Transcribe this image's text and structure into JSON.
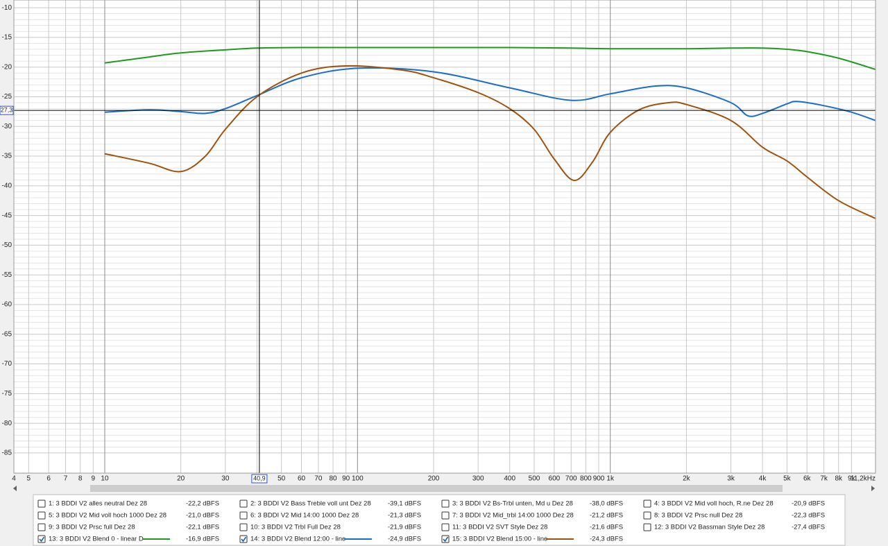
{
  "chart_data": {
    "type": "line",
    "xscale": "log",
    "xlim": [
      4.37,
      11200
    ],
    "ylim": [
      -88.4,
      -8.7
    ],
    "yticks": [
      -10,
      -15,
      -20,
      -25,
      -30,
      -35,
      -40,
      -45,
      -50,
      -55,
      -60,
      -65,
      -70,
      -75,
      -80,
      -85
    ],
    "xticks": [
      4,
      5,
      6,
      7,
      8,
      9,
      10,
      20,
      30,
      40,
      50,
      60,
      70,
      80,
      90,
      100,
      200,
      300,
      400,
      500,
      600,
      700,
      800,
      900,
      {
        "value": 1000,
        "label": "1k"
      },
      {
        "value": 2000,
        "label": "2k"
      },
      {
        "value": 3000,
        "label": "3k"
      },
      {
        "value": 4000,
        "label": "4k"
      },
      {
        "value": 5000,
        "label": "5k"
      },
      {
        "value": 6000,
        "label": "6k"
      },
      {
        "value": 7000,
        "label": "7k"
      },
      {
        "value": 8000,
        "label": "8k"
      },
      {
        "value": 9000,
        "label": "9k"
      },
      {
        "value": 11200,
        "label": "11,2kHz"
      }
    ],
    "grid": true,
    "minor_grid": true,
    "cursor": {
      "x": {
        "value": 40.9,
        "label": "40,9"
      },
      "y": {
        "value": -27.3,
        "label": "27,3"
      }
    },
    "series": [
      {
        "name": "1: 3 BDDI V2 alles neutral Dez 28",
        "level": "-22,2 dBFS",
        "color": "#c0282d",
        "checked": false
      },
      {
        "name": "2: 3 BDDI V2 Bass Treble voll unt Dez 28",
        "level": "-39,1 dBFS",
        "color": "#2e7d32",
        "checked": false
      },
      {
        "name": "3: 3 BDDI V2 Bs-Trbl unten, Md u Dez 28",
        "level": "-38,0 dBFS",
        "color": "#4a4ab0",
        "checked": false
      },
      {
        "name": "4: 3 BDDI V2 Mid voll hoch, R.ne Dez 28",
        "level": "-20,9 dBFS",
        "color": "#e07b20",
        "checked": false
      },
      {
        "name": "5: 3 BDDI V2 Mid voll hoch 1000 Dez 28",
        "level": "-21,0 dBFS",
        "color": "#3a9a3a",
        "checked": false
      },
      {
        "name": "6: 3 BDDI V2 Mid 14:00 1000 Dez 28",
        "level": "-21,3 dBFS",
        "color": "#2a6ab0",
        "checked": false
      },
      {
        "name": "7: 3 BDDI V2 Mid_trbl 14:00 1000 Dez 28",
        "level": "-21,2 dBFS",
        "color": "#8b4a1c",
        "checked": false
      },
      {
        "name": "8: 3 BDDI V2 Prsc null Dez 28",
        "level": "-22,3 dBFS",
        "color": "#2a8a8a",
        "checked": false
      },
      {
        "name": "9: 3 BDDI V2 Prsc full Dez 28",
        "level": "-22,1 dBFS",
        "color": "#8a2ab0",
        "checked": false
      },
      {
        "name": "10: 3 BDDI V2 Trbl Full Dez 28",
        "level": "-21,9 dBFS",
        "color": "#b02ab0",
        "checked": false
      },
      {
        "name": "11: 3 BDDI V2 SVT Style Dez 28",
        "level": "-21,6 dBFS",
        "color": "#a01818",
        "checked": false
      },
      {
        "name": "12: 3 BDDI V2 Bassman Style Dez 28",
        "level": "-27,4 dBFS",
        "color": "#1a6a5a",
        "checked": false
      },
      {
        "name": "13: 3 BDDI V2 Blend 0 - linear D",
        "level": "-16,9 dBFS",
        "color": "#1e9a1e",
        "checked": true,
        "x": [
          10,
          15,
          20,
          30,
          40,
          60,
          100,
          200,
          400,
          700,
          1000,
          2000,
          3000,
          4000,
          5000,
          6000,
          8000,
          11200
        ],
        "values": [
          -19.3,
          -18.3,
          -17.6,
          -17.1,
          -16.8,
          -16.7,
          -16.7,
          -16.7,
          -16.7,
          -16.8,
          -16.9,
          -16.9,
          -16.8,
          -16.8,
          -17.0,
          -17.4,
          -18.5,
          -20.4
        ]
      },
      {
        "name": "14: 3 BDDI V2 Blend 12:00 - line",
        "level": "-24,9 dBFS",
        "color": "#1a6ec8",
        "checked": true,
        "x": [
          10,
          15,
          20,
          25,
          30,
          40,
          60,
          100,
          200,
          400,
          700,
          1000,
          1500,
          2000,
          3000,
          3500,
          4000,
          5000,
          5500,
          7000,
          9000,
          11200
        ],
        "values": [
          -27.6,
          -27.2,
          -27.5,
          -27.8,
          -27.0,
          -24.8,
          -21.8,
          -20.2,
          -20.8,
          -23.5,
          -25.6,
          -24.5,
          -23.2,
          -23.5,
          -26.0,
          -28.2,
          -27.8,
          -26.2,
          -25.8,
          -26.5,
          -27.6,
          -29.0
        ]
      },
      {
        "name": "15: 3 BDDI V2 Blend 15:00 - line",
        "level": "-24,3 dBFS",
        "color": "#a0520a",
        "checked": true,
        "x": [
          10,
          15,
          20,
          25,
          30,
          40,
          60,
          90,
          150,
          200,
          300,
          400,
          500,
          600,
          720,
          850,
          1000,
          1300,
          1700,
          2000,
          3000,
          4000,
          5000,
          6000,
          8000,
          11200
        ],
        "values": [
          -34.6,
          -36.2,
          -37.6,
          -35.0,
          -30.5,
          -25.0,
          -21.0,
          -19.8,
          -20.5,
          -21.8,
          -24.3,
          -27.0,
          -30.5,
          -35.5,
          -39.1,
          -36.0,
          -31.0,
          -27.2,
          -26.0,
          -26.3,
          -29.0,
          -33.5,
          -35.8,
          -38.5,
          -42.5,
          -45.5
        ]
      }
    ]
  }
}
